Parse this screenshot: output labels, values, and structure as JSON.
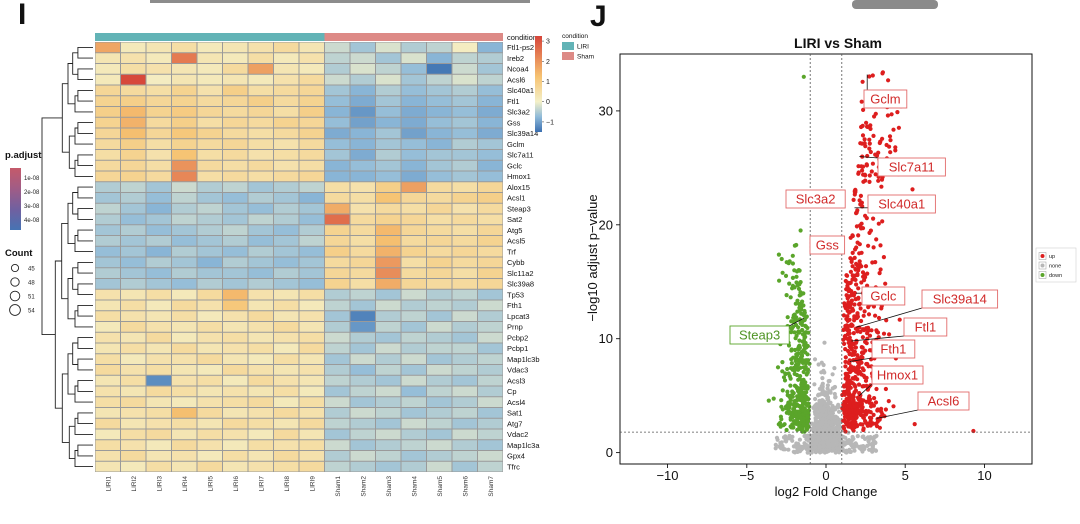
{
  "panels": {
    "left_letter": "I",
    "right_letter": "J"
  },
  "chart_data": [
    {
      "type": "heatmap",
      "title": "",
      "samples": [
        "LIRI1",
        "LIRI2",
        "LIRI3",
        "LIRI4",
        "LIRI5",
        "LIRI6",
        "LIRI7",
        "LIRI8",
        "LIRI9",
        "Sham1",
        "Sham2",
        "Sham3",
        "Sham4",
        "Sham5",
        "Sham6",
        "Sham7"
      ],
      "conditions": [
        "LIRI",
        "LIRI",
        "LIRI",
        "LIRI",
        "LIRI",
        "LIRI",
        "LIRI",
        "LIRI",
        "LIRI",
        "Sham",
        "Sham",
        "Sham",
        "Sham",
        "Sham",
        "Sham",
        "Sham"
      ],
      "genes": [
        "Ftl1-ps2",
        "Ireb2",
        "Ncoa4",
        "Acsl6",
        "Slc40a1",
        "Ftl1",
        "Slc3a2",
        "Gss",
        "Slc39a14",
        "Gclm",
        "Slc7a11",
        "Gclc",
        "Hmox1",
        "Alox15",
        "Acsl1",
        "Steap3",
        "Sat2",
        "Atg5",
        "Acsl5",
        "Trf",
        "Cybb",
        "Slc11a2",
        "Slc39a8",
        "Tp53",
        "Fth1",
        "Lpcat3",
        "Prnp",
        "Pcbp2",
        "Pcbp1",
        "Map1lc3b",
        "Vdac3",
        "Acsl3",
        "Cp",
        "Acsl4",
        "Sat1",
        "Atg7",
        "Vdac2",
        "Map1lc3a",
        "Gpx4",
        "Tfrc"
      ],
      "values": [
        [
          1.7,
          0.2,
          0.3,
          0.5,
          0.2,
          0.3,
          0.4,
          0.6,
          0.3,
          -0.3,
          -0.6,
          -0.2,
          -0.5,
          -0.4,
          0.1,
          -0.8
        ],
        [
          0.3,
          0.4,
          0.2,
          2.4,
          0.3,
          0.2,
          0.5,
          0.2,
          0.4,
          -0.4,
          -0.3,
          -0.6,
          -0.2,
          -0.8,
          -0.4,
          -0.5
        ],
        [
          0.2,
          0.5,
          0.4,
          0.3,
          0.2,
          0.6,
          1.8,
          0.3,
          0.2,
          -0.5,
          -0.2,
          -0.4,
          -0.7,
          -1.4,
          -0.3,
          -0.6
        ],
        [
          0.2,
          3.2,
          0.1,
          0.3,
          0.2,
          0.3,
          0.2,
          0.4,
          0.6,
          -0.3,
          -0.5,
          -0.2,
          -0.6,
          -0.4,
          -0.2,
          -0.4
        ],
        [
          0.7,
          0.6,
          0.5,
          0.8,
          0.4,
          0.9,
          0.5,
          0.6,
          0.7,
          -0.6,
          -0.8,
          -0.5,
          -0.7,
          -0.6,
          -0.5,
          -0.7
        ],
        [
          0.8,
          0.9,
          0.7,
          0.8,
          0.6,
          0.7,
          0.9,
          0.6,
          0.8,
          -0.7,
          -0.9,
          -0.6,
          -0.8,
          -0.7,
          -0.6,
          -0.8
        ],
        [
          0.9,
          1.4,
          0.8,
          1.0,
          0.7,
          0.6,
          0.7,
          0.5,
          0.9,
          -0.8,
          -1.1,
          -0.7,
          -0.9,
          -0.8,
          -0.7,
          -0.9
        ],
        [
          0.8,
          1.5,
          0.6,
          0.9,
          0.5,
          0.7,
          0.6,
          0.8,
          0.7,
          -0.7,
          -1.0,
          -0.8,
          -0.9,
          -0.7,
          -0.6,
          -0.8
        ],
        [
          0.7,
          1.3,
          0.7,
          1.1,
          0.8,
          0.6,
          0.5,
          0.6,
          0.8,
          -0.9,
          -0.8,
          -0.6,
          -1.0,
          -0.8,
          -0.7,
          -0.9
        ],
        [
          0.6,
          0.9,
          0.5,
          0.8,
          0.6,
          0.7,
          0.5,
          0.4,
          0.6,
          -0.7,
          -0.8,
          -0.6,
          -0.7,
          -0.8,
          -0.5,
          -0.6
        ],
        [
          0.5,
          0.8,
          0.4,
          1.2,
          0.5,
          0.6,
          0.4,
          0.5,
          0.6,
          -0.6,
          -0.9,
          -0.5,
          -0.7,
          -0.6,
          -0.6,
          -0.7
        ],
        [
          0.6,
          0.7,
          0.5,
          2.0,
          0.6,
          0.5,
          0.6,
          0.4,
          0.5,
          -0.8,
          -0.7,
          -0.6,
          -0.8,
          -0.6,
          -0.5,
          -0.8
        ],
        [
          0.7,
          0.8,
          0.6,
          2.2,
          0.5,
          0.6,
          0.5,
          0.6,
          0.7,
          -0.8,
          -0.8,
          -0.7,
          -0.9,
          -0.7,
          -0.6,
          -0.7
        ],
        [
          -0.5,
          -0.4,
          -0.6,
          -0.3,
          -0.5,
          -0.4,
          -0.6,
          -0.5,
          -0.4,
          0.5,
          0.4,
          0.9,
          1.8,
          0.6,
          0.5,
          0.7
        ],
        [
          -0.6,
          -0.5,
          -0.7,
          -0.4,
          -0.6,
          -0.7,
          -0.5,
          -0.6,
          -0.8,
          0.6,
          0.5,
          1.2,
          0.7,
          0.6,
          0.8,
          0.9
        ],
        [
          -0.4,
          -0.6,
          -0.8,
          -0.5,
          -0.4,
          -0.6,
          -0.7,
          -0.5,
          -0.6,
          1.6,
          0.4,
          0.6,
          0.5,
          0.7,
          0.4,
          0.6
        ],
        [
          -0.5,
          -0.7,
          -0.6,
          -0.4,
          -0.5,
          -0.6,
          -0.4,
          -0.5,
          -0.7,
          2.6,
          0.6,
          0.8,
          0.7,
          0.5,
          0.6,
          0.5
        ],
        [
          -0.6,
          -0.5,
          -0.7,
          -0.6,
          -0.5,
          -0.4,
          -0.6,
          -0.7,
          -0.5,
          0.8,
          0.6,
          1.4,
          0.7,
          0.6,
          0.5,
          0.7
        ],
        [
          -0.5,
          -0.6,
          -0.5,
          -0.7,
          -0.6,
          -0.5,
          -0.7,
          -0.6,
          -0.4,
          0.7,
          0.5,
          1.3,
          0.6,
          0.7,
          0.6,
          0.8
        ],
        [
          -0.7,
          -0.6,
          -0.8,
          -0.5,
          -0.6,
          -0.7,
          -0.5,
          -0.6,
          -0.7,
          0.9,
          0.6,
          1.5,
          0.8,
          0.6,
          0.7,
          0.6
        ],
        [
          -0.6,
          -0.7,
          -0.5,
          -0.6,
          -0.8,
          -0.5,
          -0.6,
          -0.7,
          -0.6,
          0.6,
          0.7,
          1.9,
          0.5,
          0.8,
          0.6,
          0.7
        ],
        [
          -0.5,
          -0.6,
          -0.7,
          -0.5,
          -0.6,
          -0.6,
          -0.7,
          -0.5,
          -0.6,
          0.7,
          0.6,
          2.1,
          0.6,
          0.7,
          0.5,
          0.8
        ],
        [
          -0.6,
          -0.5,
          -0.6,
          -0.7,
          -0.5,
          -0.6,
          -0.5,
          -0.6,
          -0.7,
          0.8,
          0.5,
          1.6,
          0.7,
          0.6,
          0.6,
          0.7
        ],
        [
          0.4,
          0.3,
          0.5,
          0.2,
          0.6,
          1.4,
          0.4,
          0.3,
          0.5,
          -0.5,
          -0.4,
          -0.6,
          -0.3,
          -0.5,
          -0.4,
          -0.6
        ],
        [
          0.3,
          0.5,
          0.2,
          0.6,
          0.4,
          1.1,
          0.3,
          0.5,
          0.2,
          -0.4,
          -0.6,
          -0.3,
          -0.5,
          -0.4,
          -0.5,
          -0.3
        ],
        [
          0.5,
          0.4,
          0.3,
          0.5,
          0.2,
          0.4,
          0.6,
          0.3,
          0.4,
          -0.6,
          -1.3,
          -0.5,
          -0.4,
          -0.6,
          -0.3,
          -0.5
        ],
        [
          0.2,
          0.6,
          0.4,
          0.3,
          0.5,
          0.3,
          0.4,
          0.6,
          0.3,
          -0.5,
          -1.1,
          -0.4,
          -0.6,
          -0.3,
          -0.5,
          -0.4
        ],
        [
          0.4,
          0.3,
          0.6,
          0.2,
          0.4,
          0.5,
          0.3,
          0.4,
          0.5,
          -0.3,
          -0.5,
          -0.6,
          -0.4,
          -0.5,
          -0.6,
          -0.3
        ],
        [
          0.3,
          0.5,
          0.3,
          0.6,
          0.3,
          0.4,
          0.5,
          0.2,
          0.6,
          -0.4,
          -0.6,
          -0.3,
          -0.5,
          -0.4,
          -0.4,
          -0.6
        ],
        [
          0.5,
          0.2,
          0.4,
          0.4,
          0.6,
          0.3,
          0.2,
          0.5,
          0.3,
          -0.6,
          -0.3,
          -0.5,
          -0.3,
          -0.6,
          -0.5,
          -0.4
        ],
        [
          0.6,
          0.4,
          0.5,
          0.3,
          0.2,
          0.6,
          0.4,
          0.3,
          0.4,
          -0.5,
          -0.7,
          -0.4,
          -0.6,
          -0.3,
          -0.4,
          -0.5
        ],
        [
          0.3,
          0.5,
          -1.2,
          0.4,
          0.5,
          0.2,
          0.6,
          0.4,
          0.3,
          -0.4,
          -0.5,
          -0.6,
          -0.3,
          -0.5,
          -0.6,
          -0.4
        ],
        [
          0.4,
          0.3,
          0.6,
          0.5,
          0.3,
          0.4,
          0.3,
          0.5,
          0.2,
          -0.6,
          -0.4,
          -0.3,
          -0.7,
          -0.4,
          -0.3,
          -0.5
        ],
        [
          0.5,
          0.6,
          0.3,
          0.2,
          0.4,
          0.5,
          0.6,
          0.2,
          0.5,
          -0.3,
          -0.6,
          -0.5,
          -0.4,
          -0.6,
          -0.5,
          -0.3
        ],
        [
          0.3,
          0.4,
          0.5,
          1.3,
          0.6,
          0.3,
          0.4,
          0.6,
          0.4,
          -0.5,
          -0.3,
          -0.4,
          -0.6,
          -0.5,
          -0.4,
          -0.6
        ],
        [
          0.6,
          0.3,
          0.4,
          0.5,
          0.3,
          0.6,
          0.5,
          0.3,
          0.6,
          -0.4,
          -0.5,
          -0.6,
          -0.3,
          -0.4,
          -0.6,
          -0.5
        ],
        [
          0.2,
          0.5,
          0.6,
          0.3,
          0.5,
          0.4,
          0.2,
          0.6,
          0.3,
          -0.6,
          -0.4,
          -0.3,
          -0.5,
          -0.6,
          -0.3,
          -0.4
        ],
        [
          0.5,
          0.4,
          0.2,
          0.6,
          0.4,
          0.2,
          0.5,
          0.4,
          0.5,
          -0.3,
          -0.6,
          -0.5,
          -0.4,
          -0.3,
          -0.5,
          -0.6
        ],
        [
          0.4,
          0.6,
          0.3,
          0.4,
          0.2,
          0.5,
          0.3,
          0.6,
          0.4,
          -0.5,
          -0.3,
          -0.4,
          -0.6,
          -0.5,
          -0.4,
          -0.3
        ],
        [
          0.3,
          0.2,
          0.5,
          0.3,
          0.6,
          0.3,
          0.4,
          0.5,
          0.6,
          -0.4,
          -0.5,
          -0.6,
          -0.5,
          -0.3,
          -0.6,
          -0.4
        ]
      ],
      "color_scale": {
        "ticks": [
          3,
          2,
          1,
          0,
          -1
        ],
        "stops": [
          {
            "value": -1.5,
            "color": "#3a6fb0"
          },
          {
            "value": -0.75,
            "color": "#8fbad9"
          },
          {
            "value": 0,
            "color": "#f4f0c8"
          },
          {
            "value": 1.25,
            "color": "#f6c271"
          },
          {
            "value": 3.25,
            "color": "#d6453a"
          }
        ]
      },
      "condition_legend": {
        "title": "condition",
        "items": [
          {
            "label": "LIRI",
            "color": "#62b3b6"
          },
          {
            "label": "Sham",
            "color": "#dd8a86"
          }
        ]
      },
      "padjust_legend": {
        "title": "p.adjust",
        "ticks": [
          "1e-08",
          "2e-08",
          "3e-08",
          "4e-08"
        ],
        "colors": [
          "#c55a6a",
          "#a05c86",
          "#7060a0",
          "#4673b3"
        ]
      },
      "count_legend": {
        "title": "Count",
        "ticks": [
          "45",
          "48",
          "51",
          "54"
        ]
      }
    },
    {
      "type": "scatter",
      "subtype": "volcano",
      "title": "LIRI vs Sham",
      "xlabel": "log2 Fold Change",
      "ylabel": "−log10 adjust p−value",
      "xlim": [
        -13,
        13
      ],
      "ylim": [
        -1,
        35
      ],
      "xticks": [
        -10,
        -5,
        0,
        5,
        10
      ],
      "yticks": [
        0,
        10,
        20,
        30
      ],
      "thresholds": {
        "fc": [
          -1,
          1
        ],
        "p": 1.8
      },
      "legend": {
        "items": [
          {
            "label": "up",
            "color": "#dd1e1e"
          },
          {
            "label": "none",
            "color": "#b7b7b7"
          },
          {
            "label": "down",
            "color": "#5aa52a"
          }
        ]
      },
      "labels": [
        {
          "gene": "Gclm",
          "x": 2.6,
          "y": 33.2
        },
        {
          "gene": "Slc7a11",
          "x": 2.1,
          "y": 26.0
        },
        {
          "gene": "Slc40a1",
          "x": 1.8,
          "y": 21.5
        },
        {
          "gene": "Slc3a2",
          "x": -0.6,
          "y": 22.0
        },
        {
          "gene": "Gss",
          "x": -0.2,
          "y": 18.5
        },
        {
          "gene": "Gclc",
          "x": 1.9,
          "y": 14.0
        },
        {
          "gene": "Slc39a14",
          "x": 1.9,
          "y": 11.0
        },
        {
          "gene": "Ftl1",
          "x": 1.6,
          "y": 9.8
        },
        {
          "gene": "Fth1",
          "x": 1.5,
          "y": 8.0
        },
        {
          "gene": "Hmox1",
          "x": 2.1,
          "y": 5.0
        },
        {
          "gene": "Acsl6",
          "x": 3.2,
          "y": 3.0
        },
        {
          "gene": "Steap3",
          "x": -1.4,
          "y": 11.8
        }
      ]
    }
  ]
}
